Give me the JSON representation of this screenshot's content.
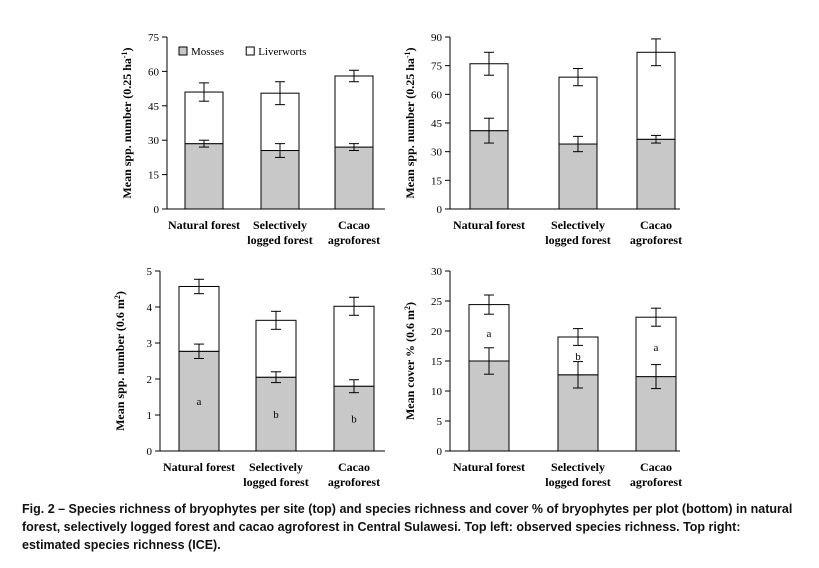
{
  "chart_data": [
    {
      "type": "bar",
      "stacked": true,
      "panel": "top-left",
      "categories": [
        [
          "Natural forest"
        ],
        [
          "Selectively",
          "logged forest"
        ],
        [
          "Cacao",
          "agroforest"
        ]
      ],
      "ylabel": "Mean spp. number (0.25 ha",
      "ylabel_sup": "-1",
      "ylabel_end": ")",
      "ylim": [
        0,
        75
      ],
      "yticks": [
        0,
        15,
        30,
        45,
        60,
        75
      ],
      "legend": {
        "placement": "top",
        "items": [
          {
            "name": "Mosses",
            "color": "#c8c8c8"
          },
          {
            "name": "Liverworts",
            "color": "#ffffff"
          }
        ]
      },
      "series": [
        {
          "name": "Mosses",
          "values": [
            28.5,
            25.5,
            27
          ],
          "errors": [
            1.5,
            3,
            1.5
          ],
          "color": "#c8c8c8"
        },
        {
          "name": "Liverworts",
          "values": [
            22.5,
            25,
            31
          ],
          "errors": [
            4,
            5,
            2.5
          ],
          "color": "#ffffff"
        }
      ],
      "annotations": {
        "Mosses": [
          "",
          "",
          ""
        ],
        "Liverworts": [
          "",
          "",
          ""
        ]
      }
    },
    {
      "type": "bar",
      "stacked": true,
      "panel": "top-right",
      "categories": [
        [
          "Natural forest"
        ],
        [
          "Selectively",
          "logged forest"
        ],
        [
          "Cacao",
          "agroforest"
        ]
      ],
      "ylabel": "Mean spp. number (0.25 ha",
      "ylabel_sup": "-1",
      "ylabel_end": ")",
      "ylim": [
        0,
        90
      ],
      "yticks": [
        0,
        15,
        30,
        45,
        60,
        75,
        90
      ],
      "series": [
        {
          "name": "Mosses",
          "values": [
            41,
            34,
            36.5
          ],
          "errors": [
            6.5,
            4,
            2
          ],
          "color": "#c8c8c8"
        },
        {
          "name": "Liverworts",
          "values": [
            35,
            35,
            45.5
          ],
          "errors": [
            6,
            4.5,
            7
          ],
          "color": "#ffffff"
        }
      ],
      "annotations": {
        "Mosses": [
          "",
          "",
          ""
        ],
        "Liverworts": [
          "",
          "",
          ""
        ]
      }
    },
    {
      "type": "bar",
      "stacked": true,
      "panel": "bottom-left",
      "categories": [
        [
          "Natural forest"
        ],
        [
          "Selectively",
          "logged forest"
        ],
        [
          "Cacao",
          "agroforest"
        ]
      ],
      "ylabel": "Mean spp. number (0.6 m",
      "ylabel_sup": "2",
      "ylabel_end": ")",
      "ylim": [
        0,
        5
      ],
      "yticks": [
        0,
        1,
        2,
        3,
        4,
        5
      ],
      "series": [
        {
          "name": "Mosses",
          "values": [
            2.77,
            2.05,
            1.8
          ],
          "errors": [
            0.2,
            0.15,
            0.18
          ],
          "color": "#c8c8c8"
        },
        {
          "name": "Liverworts",
          "values": [
            1.8,
            1.58,
            2.22
          ],
          "errors": [
            0.2,
            0.25,
            0.25
          ],
          "color": "#ffffff"
        }
      ],
      "annotations": {
        "Mosses": [
          "a",
          "b",
          "b"
        ],
        "Liverworts": [
          "",
          "",
          ""
        ]
      }
    },
    {
      "type": "bar",
      "stacked": true,
      "panel": "bottom-right",
      "categories": [
        [
          "Natural forest"
        ],
        [
          "Selectively",
          "logged forest"
        ],
        [
          "Cacao",
          "agroforest"
        ]
      ],
      "ylabel": "Mean cover % (0.6 m",
      "ylabel_sup": "2",
      "ylabel_end": ")",
      "ylim": [
        0,
        30
      ],
      "yticks": [
        0,
        5,
        10,
        15,
        20,
        25,
        30
      ],
      "series": [
        {
          "name": "Mosses",
          "values": [
            15,
            12.7,
            12.4
          ],
          "errors": [
            2.2,
            2.2,
            2
          ],
          "color": "#c8c8c8"
        },
        {
          "name": "Liverworts",
          "values": [
            9.4,
            6.3,
            9.9
          ],
          "errors": [
            1.6,
            1.4,
            1.5
          ],
          "color": "#ffffff"
        }
      ],
      "annotations": {
        "Mosses": [
          "",
          "",
          ""
        ],
        "Liverworts": [
          "a",
          "b",
          "a"
        ]
      }
    }
  ],
  "caption": "Fig. 2 – Species richness of bryophytes per site (top) and species richness and cover % of bryophytes per plot (bottom) in natural forest, selectively logged forest and cacao agroforest in Central Sulawesi. Top left: observed species richness. Top right: estimated species richness (ICE)."
}
